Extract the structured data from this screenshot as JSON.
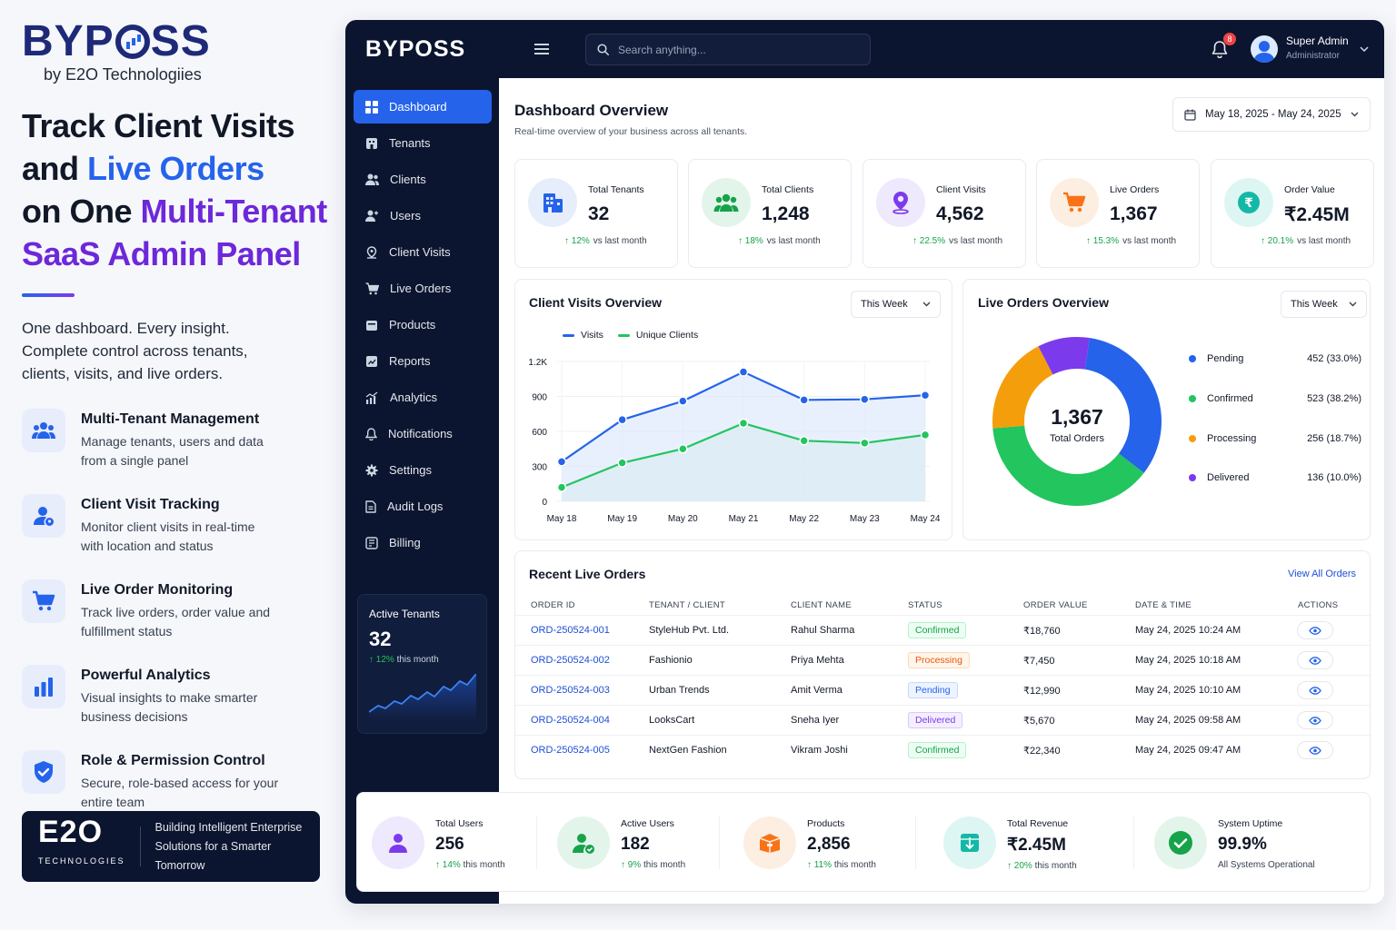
{
  "promo": {
    "brand": "BYPOSS",
    "brand_sub": "by E2O Technologiies",
    "headline": {
      "l1": "Track Client Visits",
      "l2a": "and ",
      "l2b": "Live Orders",
      "l3a": "on One ",
      "l3b": "Multi-Tenant",
      "l4": "SaaS Admin Panel"
    },
    "lead": "One dashboard. Every insight. Complete control across tenants, clients, visits, and live orders.",
    "features": [
      {
        "title": "Multi-Tenant Management",
        "desc": "Manage tenants, users and data from a single panel",
        "icon": "users-icon"
      },
      {
        "title": "Client Visit Tracking",
        "desc": "Monitor client visits in real-time with location and status",
        "icon": "user-pin-icon"
      },
      {
        "title": "Live Order Monitoring",
        "desc": "Track live orders, order value and fulfillment status",
        "icon": "cart-icon"
      },
      {
        "title": "Powerful Analytics",
        "desc": "Visual insights to make smarter business decisions",
        "icon": "bar-chart-icon"
      },
      {
        "title": "Role & Permission Control",
        "desc": "Secure, role-based access for your entire team",
        "icon": "shield-check-icon"
      }
    ],
    "e2o": {
      "logo": "E2O",
      "logo_sub": "TECHNOLOGIES",
      "tagline_1": "Building Intelligent Enterprise",
      "tagline_2": "Solutions for a Smarter Tomorrow"
    }
  },
  "topbar": {
    "logo": "BYPOSS",
    "search_placeholder": "Search anything...",
    "notif_count": "8",
    "user_name": "Super Admin",
    "user_role": "Administrator"
  },
  "sidebar": {
    "items": [
      {
        "label": "Dashboard",
        "icon": "grid-icon"
      },
      {
        "label": "Tenants",
        "icon": "building-icon"
      },
      {
        "label": "Clients",
        "icon": "clients-icon"
      },
      {
        "label": "Users",
        "icon": "users-icon"
      },
      {
        "label": "Client Visits",
        "icon": "location-icon"
      },
      {
        "label": "Live Orders",
        "icon": "cart-icon"
      },
      {
        "label": "Products",
        "icon": "box-icon"
      },
      {
        "label": "Reports",
        "icon": "report-icon"
      },
      {
        "label": "Analytics",
        "icon": "analytics-icon"
      },
      {
        "label": "Notifications",
        "icon": "bell-icon"
      },
      {
        "label": "Settings",
        "icon": "gear-icon"
      },
      {
        "label": "Audit Logs",
        "icon": "file-icon"
      },
      {
        "label": "Billing",
        "icon": "billing-icon"
      }
    ],
    "active_card": {
      "title": "Active Tenants",
      "value": "32",
      "change": "12%",
      "change_text": "this month"
    }
  },
  "overview": {
    "title": "Dashboard Overview",
    "subtitle": "Real-time overview of your business across all tenants.",
    "date_range": "May 18, 2025 - May 24, 2025"
  },
  "stats": [
    {
      "label": "Total Tenants",
      "value": "32",
      "change": "12%",
      "change_text": "vs last month",
      "color": "#2563eb",
      "bg": "#e6eefc",
      "icon": "building-icon"
    },
    {
      "label": "Total Clients",
      "value": "1,248",
      "change": "18%",
      "change_text": "vs last month",
      "color": "#16a34a",
      "bg": "#e3f5ea",
      "icon": "clients-icon"
    },
    {
      "label": "Client Visits",
      "value": "4,562",
      "change": "22.5%",
      "change_text": "vs last month",
      "color": "#7c3aed",
      "bg": "#efe9fd",
      "icon": "location-icon"
    },
    {
      "label": "Live Orders",
      "value": "1,367",
      "change": "15.3%",
      "change_text": "vs last month",
      "color": "#f97316",
      "bg": "#fdeee2",
      "icon": "cart-icon"
    },
    {
      "label": "Order Value",
      "value": "₹2.45M",
      "change": "20.1%",
      "change_text": "vs last month",
      "color": "#14b8a6",
      "bg": "#def6f3",
      "icon": "rupee-icon"
    }
  ],
  "visits_panel": {
    "title": "Client Visits Overview",
    "period": "This Week"
  },
  "orders_panel": {
    "title": "Live Orders Overview",
    "period": "This Week",
    "center_value": "1,367",
    "center_label": "Total Orders"
  },
  "chart_data": [
    {
      "type": "area",
      "title": "Client Visits Overview",
      "categories": [
        "May 18",
        "May 19",
        "May 20",
        "May 21",
        "May 22",
        "May 23",
        "May 24"
      ],
      "series": [
        {
          "name": "Visits",
          "values": [
            340,
            700,
            860,
            1110,
            870,
            875,
            910
          ],
          "color": "#2563eb"
        },
        {
          "name": "Unique Clients",
          "values": [
            120,
            330,
            450,
            670,
            520,
            500,
            570
          ],
          "color": "#22c55e"
        }
      ],
      "ylim": [
        0,
        1200
      ],
      "yticks": [
        "0",
        "300",
        "600",
        "900",
        "1.2K"
      ],
      "legend": "top-left",
      "grid": true
    },
    {
      "type": "pie",
      "title": "Live Orders Overview",
      "labels": [
        "Pending",
        "Confirmed",
        "Processing",
        "Delivered"
      ],
      "values": [
        452,
        523,
        256,
        136
      ],
      "display": [
        "452 (33.0%)",
        "523 (38.2%)",
        "256 (18.7%)",
        "136 (10.0%)"
      ],
      "colors": [
        "#2563eb",
        "#22c55e",
        "#f59e0b",
        "#7c3aed"
      ],
      "legend": "right"
    }
  ],
  "recent_orders": {
    "title": "Recent Live Orders",
    "view_all": "View All Orders",
    "columns": [
      "ORDER ID",
      "TENANT / CLIENT",
      "CLIENT NAME",
      "STATUS",
      "ORDER VALUE",
      "DATE & TIME",
      "ACTIONS"
    ],
    "rows": [
      {
        "id": "ORD-250524-001",
        "tenant": "StyleHub Pvt. Ltd.",
        "client": "Rahul Sharma",
        "status": "Confirmed",
        "value": "₹18,760",
        "date": "May 24, 2025  10:24 AM"
      },
      {
        "id": "ORD-250524-002",
        "tenant": "Fashionio",
        "client": "Priya Mehta",
        "status": "Processing",
        "value": "₹7,450",
        "date": "May 24, 2025  10:18 AM"
      },
      {
        "id": "ORD-250524-003",
        "tenant": "Urban Trends",
        "client": "Amit Verma",
        "status": "Pending",
        "value": "₹12,990",
        "date": "May 24, 2025  10:10 AM"
      },
      {
        "id": "ORD-250524-004",
        "tenant": "LooksCart",
        "client": "Sneha Iyer",
        "status": "Delivered",
        "value": "₹5,670",
        "date": "May 24, 2025  09:58 AM"
      },
      {
        "id": "ORD-250524-005",
        "tenant": "NextGen Fashion",
        "client": "Vikram Joshi",
        "status": "Confirmed",
        "value": "₹22,340",
        "date": "May 24, 2025  09:47 AM"
      }
    ],
    "status_colors": {
      "Confirmed": {
        "fg": "#16a34a",
        "bg": "#ecfdf3",
        "border": "#bbf0cf"
      },
      "Processing": {
        "fg": "#ea580c",
        "bg": "#fff5eb",
        "border": "#fcd9b8"
      },
      "Pending": {
        "fg": "#2563eb",
        "bg": "#eef4ff",
        "border": "#c7d8fb"
      },
      "Delivered": {
        "fg": "#7c3aed",
        "bg": "#f4efff",
        "border": "#d9c9fb"
      }
    }
  },
  "bottom_stats": [
    {
      "label": "Total Users",
      "value": "256",
      "change": "14%",
      "change_text": "this month",
      "color": "#7c3aed",
      "bg": "#efe9fd",
      "icon": "user-icon"
    },
    {
      "label": "Active Users",
      "value": "182",
      "change": "9%",
      "change_text": "this month",
      "color": "#16a34a",
      "bg": "#e3f5ea",
      "icon": "user-check-icon"
    },
    {
      "label": "Products",
      "value": "2,856",
      "change": "11%",
      "change_text": "this month",
      "color": "#f97316",
      "bg": "#fdeee2",
      "icon": "box-icon"
    },
    {
      "label": "Total Revenue",
      "value": "₹2.45M",
      "change": "20%",
      "change_text": "this month",
      "color": "#14b8a6",
      "bg": "#def6f3",
      "icon": "wallet-icon"
    },
    {
      "label": "System Uptime",
      "value": "99.9%",
      "change": "",
      "change_text": "All Systems Operational",
      "color": "#16a34a",
      "bg": "#e3f5ea",
      "icon": "check-circle-icon"
    }
  ]
}
